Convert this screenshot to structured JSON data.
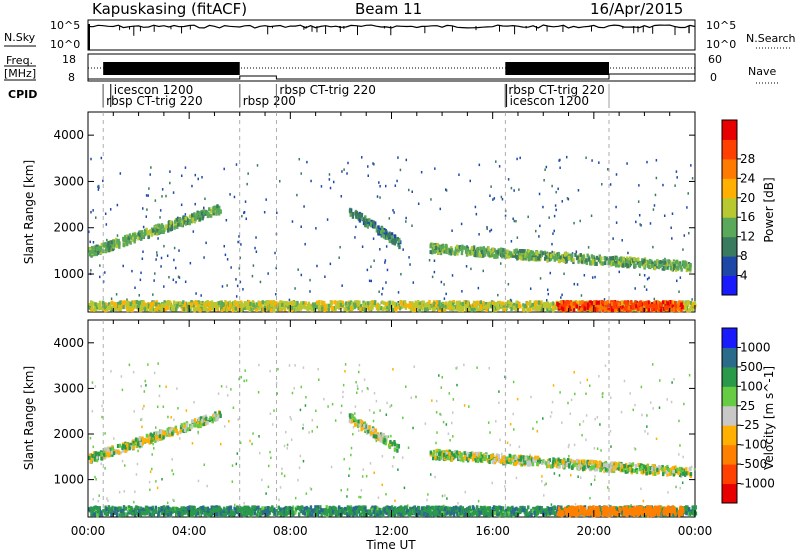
{
  "header": {
    "station": "Kapuskasing (fitACF)",
    "beam": "Beam 11",
    "date": "16/Apr/2015"
  },
  "panels": {
    "nsky_label": "N.Sky",
    "nsearch_label": "N.Search",
    "nsky_ticks": [
      "10^5",
      "10^0"
    ],
    "nsearch_ticks": [
      "10^5",
      "10^0"
    ],
    "freq_label_1": "Freq.",
    "freq_label_2": "[MHz]",
    "freq_ticks": [
      "18",
      "8"
    ],
    "nave_label": "Nave",
    "nave_ticks": [
      "60",
      "0"
    ],
    "cpid_label": "CPID",
    "cpid_segments": [
      {
        "label": "icescon 1200",
        "start_h": 0.9,
        "row": 0
      },
      {
        "label": "rbsp CT-trig 220",
        "start_h": 0.6,
        "row": 1
      },
      {
        "label": "rbsp 200",
        "start_h": 6.0,
        "row": 1
      },
      {
        "label": "rbsp CT-trig 220",
        "start_h": 7.45,
        "row": 0
      },
      {
        "label": "rbsp CT-trig 220",
        "start_h": 16.5,
        "row": 0
      },
      {
        "label": "icescon 1200",
        "start_h": 16.55,
        "row": 1
      }
    ]
  },
  "chart_data": [
    {
      "type": "heatmap",
      "title": "",
      "xlabel": "",
      "ylabel": "Slant Range [km]",
      "xlim_hours": [
        0,
        24
      ],
      "ylim": [
        180,
        4500
      ],
      "yticks": [
        1000,
        2000,
        3000,
        4000
      ],
      "colorbar_label": "Power [dB]",
      "colorbar_ticks": [
        "4",
        "8",
        "12",
        "16",
        "20",
        "24",
        "28"
      ],
      "colorbar_colors": [
        "#1a1aff",
        "#1e48a8",
        "#3a7a5e",
        "#5aa85a",
        "#b8c830",
        "#ffb000",
        "#ff7a00",
        "#ff4000",
        "#e80000"
      ],
      "features": [
        {
          "name": "early arc",
          "t_start_h": 0.0,
          "t_end_h": 5.2,
          "range_km": [
            1500,
            2450
          ],
          "level_db": 12
        },
        {
          "name": "near range band",
          "t_start_h": 0.0,
          "t_end_h": 24.0,
          "range_km": [
            200,
            500
          ],
          "level_db": 16
        },
        {
          "name": "midday arc",
          "t_start_h": 10.3,
          "t_end_h": 12.3,
          "range_km": [
            1700,
            2400
          ],
          "level_db": 8
        },
        {
          "name": "evening band",
          "t_start_h": 13.5,
          "t_end_h": 23.8,
          "range_km": [
            1200,
            1600
          ],
          "level_db": 12
        },
        {
          "name": "late near range",
          "t_start_h": 18.5,
          "t_end_h": 23.5,
          "range_km": [
            250,
            450
          ],
          "level_db": 28
        }
      ]
    },
    {
      "type": "heatmap",
      "title": "",
      "xlabel": "Time UT",
      "ylabel": "Slant Range [km]",
      "xlim_hours": [
        0,
        24
      ],
      "xticks": [
        "00:00",
        "04:00",
        "08:00",
        "12:00",
        "16:00",
        "20:00",
        "00:00"
      ],
      "ylim": [
        180,
        4500
      ],
      "yticks": [
        1000,
        2000,
        3000,
        4000
      ],
      "colorbar_label": "Velocity [m s^-1]",
      "colorbar_ticks": [
        "1000",
        "500",
        "100",
        "25",
        "-25",
        "-100",
        "-500",
        "-1000"
      ],
      "colorbar_colors": [
        "#1a1aff",
        "#2a6a8a",
        "#2a9a4a",
        "#66cc44",
        "#c8c8c8",
        "#ffb000",
        "#ff8000",
        "#ff4000",
        "#e80000"
      ],
      "features": [
        {
          "name": "early arc",
          "t_start_h": 0.0,
          "t_end_h": 5.2,
          "range_km": [
            1500,
            2450
          ],
          "velocity": 0
        },
        {
          "name": "near range band",
          "t_start_h": 0.0,
          "t_end_h": 24.0,
          "range_km": [
            200,
            500
          ],
          "velocity": 80
        },
        {
          "name": "midday arc",
          "t_start_h": 10.3,
          "t_end_h": 12.3,
          "range_km": [
            1700,
            2400
          ],
          "velocity": 0
        },
        {
          "name": "evening band",
          "t_start_h": 13.5,
          "t_end_h": 23.8,
          "range_km": [
            1200,
            1600
          ],
          "velocity": 0
        },
        {
          "name": "late near range",
          "t_start_h": 18.5,
          "t_end_h": 23.5,
          "range_km": [
            250,
            450
          ],
          "velocity": -300
        }
      ]
    }
  ]
}
